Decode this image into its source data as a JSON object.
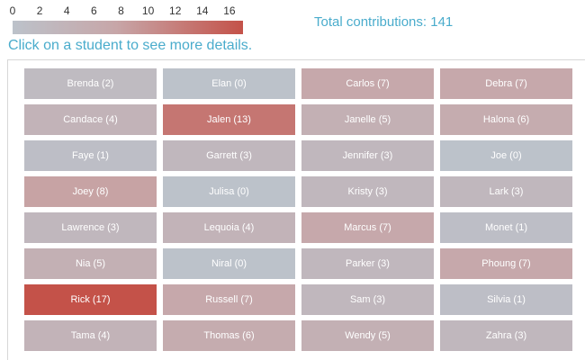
{
  "legend": {
    "ticks": [
      "0",
      "2",
      "4",
      "6",
      "8",
      "10",
      "12",
      "14",
      "16"
    ],
    "min": 0,
    "max": 17,
    "colors": {
      "low": "#bcc2ca",
      "mid": "#c7a6a8",
      "high": "#c45249"
    }
  },
  "total_text": "Total contributions: 141",
  "instructions": "Click on a student to see more details.",
  "colors": {
    "accent": "#4aaccc"
  },
  "students": [
    {
      "label": "Brenda (2)",
      "contributions": 2
    },
    {
      "label": "Elan (0)",
      "contributions": 0
    },
    {
      "label": "Carlos (7)",
      "contributions": 7
    },
    {
      "label": "Debra (7)",
      "contributions": 7
    },
    {
      "label": "Candace (4)",
      "contributions": 4
    },
    {
      "label": "Jalen (13)",
      "contributions": 13
    },
    {
      "label": "Janelle (5)",
      "contributions": 5
    },
    {
      "label": "Halona (6)",
      "contributions": 6
    },
    {
      "label": "Faye (1)",
      "contributions": 1
    },
    {
      "label": "Garrett (3)",
      "contributions": 3
    },
    {
      "label": "Jennifer (3)",
      "contributions": 3
    },
    {
      "label": "Joe (0)",
      "contributions": 0
    },
    {
      "label": "Joey (8)",
      "contributions": 8
    },
    {
      "label": "Julisa (0)",
      "contributions": 0
    },
    {
      "label": "Kristy (3)",
      "contributions": 3
    },
    {
      "label": "Lark (3)",
      "contributions": 3
    },
    {
      "label": "Lawrence (3)",
      "contributions": 3
    },
    {
      "label": "Lequoia (4)",
      "contributions": 4
    },
    {
      "label": "Marcus (7)",
      "contributions": 7
    },
    {
      "label": "Monet (1)",
      "contributions": 1
    },
    {
      "label": "Nia (5)",
      "contributions": 5
    },
    {
      "label": "Niral (0)",
      "contributions": 0
    },
    {
      "label": "Parker (3)",
      "contributions": 3
    },
    {
      "label": "Phoung (7)",
      "contributions": 7
    },
    {
      "label": "Rick (17)",
      "contributions": 17
    },
    {
      "label": "Russell (7)",
      "contributions": 7
    },
    {
      "label": "Sam (3)",
      "contributions": 3
    },
    {
      "label": "Silvia (1)",
      "contributions": 1
    },
    {
      "label": "Tama (4)",
      "contributions": 4
    },
    {
      "label": "Thomas (6)",
      "contributions": 6
    },
    {
      "label": "Wendy (5)",
      "contributions": 5
    },
    {
      "label": "Zahra (3)",
      "contributions": 3
    }
  ]
}
